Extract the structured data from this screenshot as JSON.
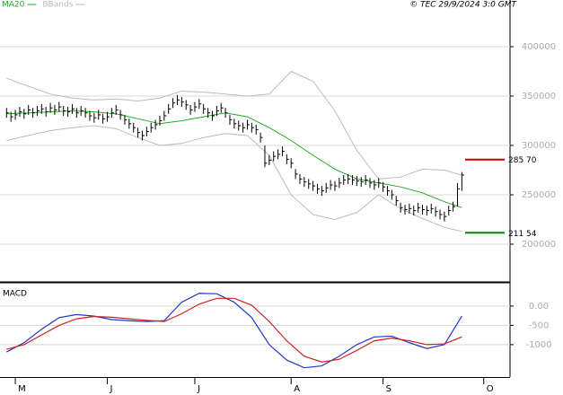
{
  "chart_data": [
    {
      "type": "ohlc",
      "credit": "© TEC 29/9/2024 3:0 GMT",
      "x": [
        -2,
        -1,
        0,
        1,
        2,
        3,
        4,
        5,
        6,
        7,
        8,
        9,
        10,
        11,
        12,
        13,
        14,
        15,
        16,
        17,
        18,
        19,
        20,
        21,
        22,
        23,
        24,
        25,
        26,
        27,
        28,
        29,
        30,
        31,
        32,
        33,
        34,
        35,
        36,
        37,
        38,
        39,
        40,
        41,
        42,
        43,
        44,
        45,
        46,
        47,
        48,
        49,
        50,
        51,
        52,
        53,
        54,
        55,
        56,
        57,
        58,
        59,
        60,
        61,
        62,
        63,
        64,
        65,
        66,
        67,
        68,
        69,
        70,
        71,
        72,
        73,
        74,
        75,
        76,
        77,
        78,
        79,
        80,
        81,
        82,
        83,
        84,
        85,
        86,
        87,
        88,
        89,
        90,
        91,
        92,
        93,
        94,
        95,
        96,
        97,
        98,
        99,
        100,
        101,
        102
      ],
      "high": [
        338000,
        334000,
        336000,
        339000,
        337000,
        341000,
        338000,
        340000,
        342000,
        339000,
        343000,
        341000,
        344000,
        340000,
        339000,
        342000,
        338000,
        340000,
        338000,
        335000,
        333000,
        336000,
        332000,
        334000,
        338000,
        341000,
        336000,
        331000,
        327000,
        323000,
        318000,
        315000,
        319000,
        323000,
        326000,
        330000,
        335000,
        342000,
        348000,
        351000,
        349000,
        346000,
        341000,
        344000,
        347000,
        342000,
        338000,
        335000,
        340000,
        343000,
        338000,
        331000,
        327000,
        325000,
        323000,
        326000,
        323000,
        321000,
        313000,
        300000,
        290000,
        294000,
        296000,
        299000,
        291000,
        287000,
        276000,
        271000,
        268000,
        266000,
        264000,
        261000,
        259000,
        262000,
        265000,
        264000,
        267000,
        270000,
        271000,
        270000,
        269000,
        268000,
        270000,
        267000,
        265000,
        267000,
        263000,
        259000,
        255000,
        249000,
        242000,
        240000,
        241000,
        239000,
        242000,
        240000,
        239000,
        241000,
        238000,
        235000,
        233000,
        239000,
        243000,
        262000,
        273000
      ],
      "low": [
        328000,
        324000,
        326000,
        329000,
        327000,
        331000,
        328000,
        330000,
        332000,
        329000,
        333000,
        331000,
        334000,
        330000,
        329000,
        332000,
        328000,
        330000,
        328000,
        325000,
        323000,
        326000,
        322000,
        324000,
        328000,
        331000,
        326000,
        321000,
        317000,
        313000,
        308000,
        305000,
        309000,
        313000,
        316000,
        320000,
        325000,
        332000,
        338000,
        341000,
        339000,
        336000,
        331000,
        334000,
        337000,
        332000,
        328000,
        325000,
        330000,
        333000,
        328000,
        321000,
        317000,
        315000,
        313000,
        316000,
        313000,
        311000,
        303000,
        278000,
        280000,
        284000,
        286000,
        289000,
        281000,
        277000,
        266000,
        261000,
        258000,
        256000,
        254000,
        251000,
        249000,
        252000,
        255000,
        254000,
        257000,
        260000,
        261000,
        260000,
        259000,
        258000,
        260000,
        257000,
        255000,
        257000,
        253000,
        249000,
        245000,
        239000,
        232000,
        230000,
        231000,
        229000,
        232000,
        230000,
        229000,
        231000,
        228000,
        225000,
        223000,
        229000,
        233000,
        238000,
        254000
      ],
      "close": [
        333000,
        329000,
        331000,
        334000,
        332000,
        336000,
        333000,
        335000,
        337000,
        334000,
        338000,
        336000,
        339000,
        335000,
        334000,
        337000,
        333000,
        335000,
        333000,
        330000,
        328000,
        331000,
        327000,
        329000,
        333000,
        336000,
        331000,
        326000,
        322000,
        318000,
        313000,
        310000,
        314000,
        318000,
        321000,
        325000,
        330000,
        337000,
        343000,
        346000,
        344000,
        341000,
        336000,
        339000,
        342000,
        337000,
        333000,
        330000,
        335000,
        338000,
        333000,
        326000,
        322000,
        320000,
        318000,
        321000,
        318000,
        316000,
        308000,
        282000,
        285000,
        289000,
        291000,
        294000,
        286000,
        282000,
        271000,
        266000,
        263000,
        261000,
        259000,
        256000,
        254000,
        257000,
        260000,
        259000,
        262000,
        265000,
        266000,
        265000,
        264000,
        263000,
        265000,
        262000,
        260000,
        262000,
        258000,
        254000,
        250000,
        244000,
        237000,
        235000,
        236000,
        234000,
        237000,
        235000,
        234000,
        236000,
        233000,
        230000,
        228000,
        234000,
        238000,
        256000,
        270000
      ],
      "bar_color": "#000000",
      "series": [
        {
          "name": "MA20",
          "color": "#22aa22",
          "x": [
            -2,
            3,
            8,
            13,
            18,
            23,
            28,
            33,
            38,
            43,
            48,
            53,
            58,
            63,
            68,
            73,
            78,
            83,
            88,
            93,
            98,
            102
          ],
          "values": [
            332000,
            333000,
            334000,
            335000,
            334000,
            332000,
            327000,
            322000,
            325000,
            329000,
            333000,
            329000,
            318000,
            305000,
            290000,
            276000,
            266000,
            262000,
            258000,
            252000,
            243000,
            237000
          ]
        },
        {
          "name": "BBands",
          "color": "#bbbbbb",
          "x": [
            -2,
            3,
            8,
            13,
            18,
            23,
            28,
            33,
            38,
            43,
            48,
            53,
            58,
            63,
            68,
            73,
            78,
            83,
            88,
            93,
            98,
            102
          ],
          "values": [
            368000,
            360000,
            352000,
            348000,
            346000,
            347000,
            345000,
            348000,
            355000,
            354000,
            352000,
            350000,
            352000,
            375000,
            365000,
            335000,
            295000,
            266000,
            268000,
            276000,
            275000,
            270000
          ],
          "lower": [
            305000,
            310000,
            315000,
            318000,
            320000,
            317000,
            308000,
            300000,
            302000,
            308000,
            312000,
            310000,
            290000,
            250000,
            230000,
            225000,
            232000,
            250000,
            236000,
            226000,
            217000,
            213000
          ]
        }
      ],
      "levels": [
        {
          "value": 285700,
          "label": "285 70",
          "color": "#cc0000"
        },
        {
          "value": 211540,
          "label": "211 54",
          "color": "#008800"
        }
      ],
      "xlim": [
        -3.5,
        113
      ],
      "ylim": [
        162700,
        447300
      ],
      "yticks": [
        200000,
        250000,
        300000,
        350000,
        400000
      ],
      "grid": true
    },
    {
      "type": "line",
      "title": "MACD",
      "series": [
        {
          "name": "MACD",
          "color": "#2233cc",
          "x": [
            -2,
            2,
            6,
            10,
            14,
            18,
            22,
            26,
            30,
            34,
            38,
            42,
            46,
            50,
            54,
            58,
            62,
            66,
            70,
            74,
            78,
            82,
            86,
            90,
            94,
            98,
            102
          ],
          "values": [
            -1190,
            -950,
            -600,
            -300,
            -220,
            -260,
            -350,
            -380,
            -400,
            -380,
            100,
            330,
            320,
            100,
            -300,
            -1000,
            -1400,
            -1600,
            -1550,
            -1300,
            -1000,
            -800,
            -780,
            -950,
            -1100,
            -1000,
            -260
          ]
        },
        {
          "name": "Signal",
          "color": "#cc2222",
          "x": [
            -2,
            2,
            6,
            10,
            14,
            18,
            22,
            26,
            30,
            34,
            38,
            42,
            46,
            50,
            54,
            58,
            62,
            66,
            70,
            74,
            78,
            82,
            86,
            90,
            94,
            98,
            102
          ],
          "values": [
            -1120,
            -1000,
            -750,
            -500,
            -330,
            -270,
            -290,
            -330,
            -370,
            -400,
            -200,
            50,
            200,
            200,
            20,
            -400,
            -900,
            -1300,
            -1450,
            -1380,
            -1150,
            -900,
            -830,
            -900,
            -1000,
            -980,
            -800
          ]
        }
      ],
      "xlim": [
        -3.5,
        113
      ],
      "ylim": [
        -1840,
        580
      ],
      "yticks": [
        {
          "value": 0,
          "label": "0.00"
        },
        -500,
        -1000
      ],
      "xticks": [
        {
          "value": 0,
          "label": "M"
        },
        {
          "value": 21,
          "label": "J"
        },
        {
          "value": 41,
          "label": "J"
        },
        {
          "value": 63,
          "label": "A"
        },
        {
          "value": 84,
          "label": "S"
        },
        {
          "value": 107,
          "label": "O"
        }
      ],
      "grid": true
    }
  ]
}
